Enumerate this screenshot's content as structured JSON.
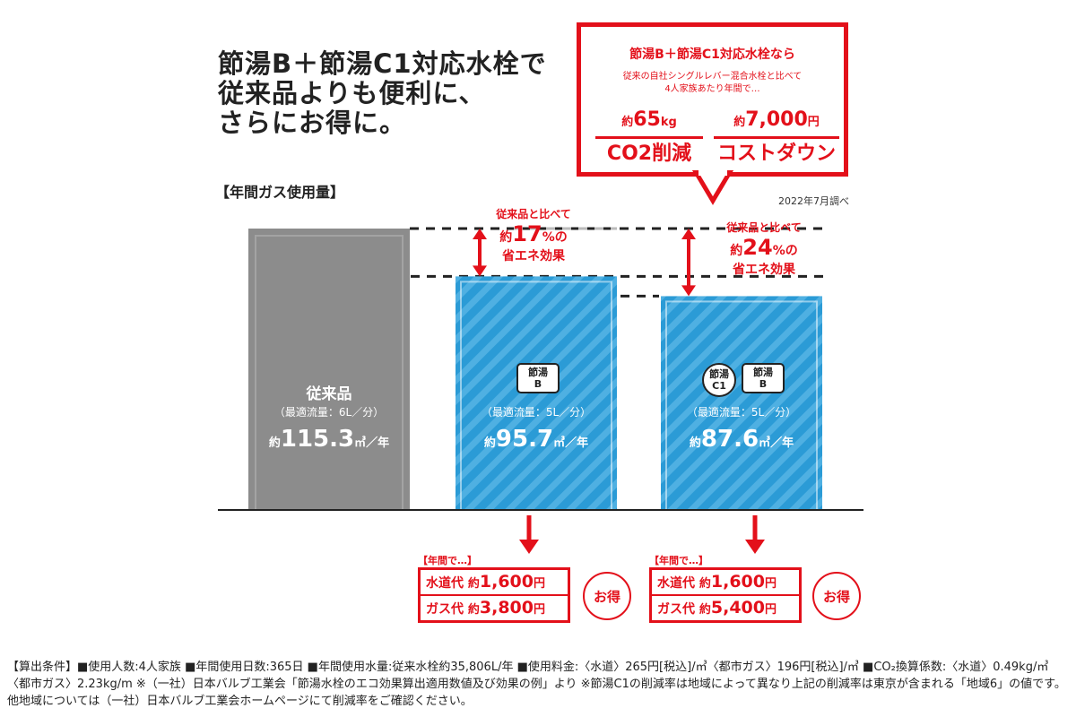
{
  "headline": [
    "節湯B＋節湯C1対応水栓で",
    "従来品よりも便利に、",
    "さらにお得に。"
  ],
  "section_label": "【年間ガス使用量】",
  "survey_note": "2022年7月調べ",
  "callout": {
    "title": "節湯B＋節湯C1対応水栓なら",
    "subtitle": [
      "従来の自社シングルレバー混合水栓と比べて",
      "4人家族あたり年間で…"
    ],
    "co2": {
      "prefix": "約",
      "value": "65",
      "unit": "kg",
      "label": "CO2削減"
    },
    "cost": {
      "prefix": "約",
      "value": "7,000",
      "unit": "円",
      "label": "コストダウン"
    }
  },
  "colors": {
    "gray": "#8c8c8c",
    "blue": "#2b9bd6",
    "red": "#e3101a"
  },
  "chart_data": {
    "type": "bar",
    "categories": [
      "従来品",
      "節湯B",
      "節湯C1+節湯B"
    ],
    "values": [
      115.3,
      95.7,
      87.6
    ],
    "ylabel": "",
    "unit": "㎥／年",
    "ylim": [
      0,
      115.3
    ],
    "bars": [
      {
        "name": "従来品",
        "badges": [],
        "flow": "（最適流量：6L／分）",
        "prefix": "約",
        "value": "115.3",
        "unit": "㎥／年",
        "color": "#8c8c8c"
      },
      {
        "name": "",
        "badges": [
          "節湯\nB"
        ],
        "flow": "（最適流量：5L／分）",
        "prefix": "約",
        "value": "95.7",
        "unit": "㎥／年",
        "color": "#2b9bd6"
      },
      {
        "name": "",
        "badges": [
          "節湯\nC1",
          "節湯\nB"
        ],
        "flow": "（最適流量：5L／分）",
        "prefix": "約",
        "value": "87.6",
        "unit": "㎥／年",
        "color": "#2b9bd6"
      }
    ],
    "savings": [
      {
        "compare": "従来品と比べて",
        "prefix": "約",
        "value": "17",
        "unit": "%の",
        "effect": "省エネ効果"
      },
      {
        "compare": "従来品と比べて",
        "prefix": "約",
        "value": "24",
        "unit": "%の",
        "effect": "省エネ効果"
      }
    ]
  },
  "annual": [
    {
      "label": "【年間で…】",
      "water": {
        "name": "水道代",
        "prefix": "約",
        "value": "1,600",
        "unit": "円"
      },
      "gas": {
        "name": "ガス代",
        "prefix": "約",
        "value": "3,800",
        "unit": "円"
      },
      "badge": "お得"
    },
    {
      "label": "【年間で…】",
      "water": {
        "name": "水道代",
        "prefix": "約",
        "value": "1,600",
        "unit": "円"
      },
      "gas": {
        "name": "ガス代",
        "prefix": "約",
        "value": "5,400",
        "unit": "円"
      },
      "badge": "お得"
    }
  ],
  "footnote": "【算出条件】■使用人数:4人家族 ■年間使用日数:365日 ■年間使用水量:従来水栓約35,806L/年 ■使用料金:〈水道〉265円[税込]/㎥〈都市ガス〉196円[税込]/㎥ ■CO₂換算係数:〈水道〉0.49kg/㎥〈都市ガス〉2.23kg/m ※（一社）日本バルブ工業会「節湯水栓のエコ効果算出適用数値及び効果の例」より ※節湯C1の削減率は地域によって異なり上記の削減率は東京が含まれる「地域6」の値です。他地域については（一社）日本バルブ工業会ホームページにて削減率をご確認ください。"
}
